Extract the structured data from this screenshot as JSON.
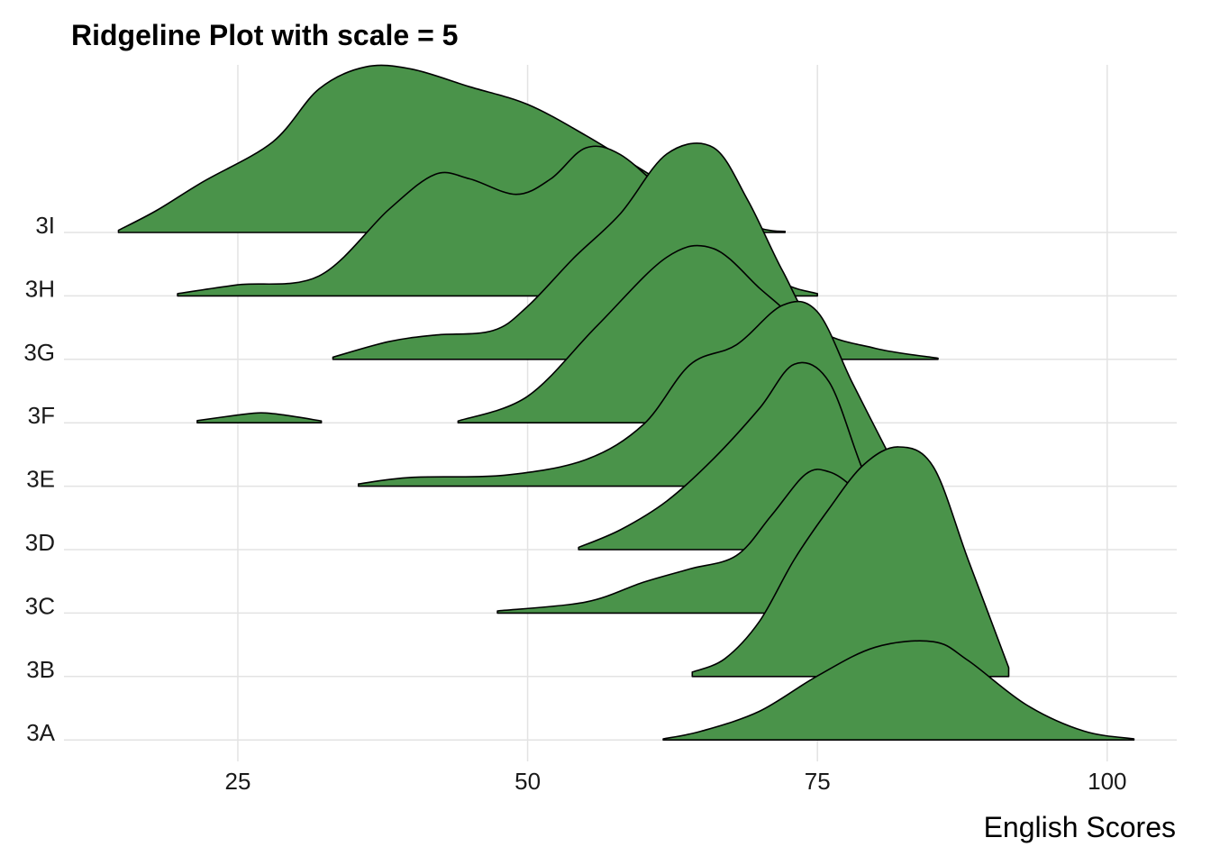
{
  "chart_data": {
    "type": "ridgeline",
    "title": "Ridgeline Plot with scale = 5",
    "xlabel": "English Scores",
    "ylabel": "",
    "xlim": [
      10,
      106
    ],
    "x_ticks": [
      25,
      50,
      75,
      100
    ],
    "grid": true,
    "fill_color": "#4a934a",
    "outline_color": "#000000",
    "scale": 5,
    "categories": [
      "3A",
      "3B",
      "3C",
      "3D",
      "3E",
      "3F",
      "3G",
      "3H",
      "3I"
    ],
    "series": [
      {
        "name": "3A",
        "x": [
          61.7,
          65,
          70,
          75,
          80,
          85,
          88,
          93,
          98,
          102.3
        ],
        "density": [
          0.05,
          0.4,
          1.3,
          2.9,
          4.2,
          4.45,
          3.6,
          1.6,
          0.4,
          0.05
        ]
      },
      {
        "name": "3B",
        "x": [
          64.2,
          67,
          70,
          73,
          76,
          79,
          82,
          85,
          88,
          91.5
        ],
        "density": [
          0.2,
          0.8,
          2.5,
          5.3,
          7.6,
          9.6,
          10.4,
          9.5,
          5.3,
          0.4
        ]
      },
      {
        "name": "3C",
        "x": [
          47.4,
          55,
          60,
          64,
          68,
          71,
          74,
          76,
          78,
          80,
          83,
          85
        ],
        "density": [
          0.1,
          0.5,
          1.4,
          2.0,
          2.6,
          4.4,
          6.3,
          6.4,
          5.7,
          4.3,
          1.2,
          0.3
        ]
      },
      {
        "name": "3D",
        "x": [
          54.4,
          58,
          62,
          66,
          70,
          73,
          76,
          79,
          81.9
        ],
        "density": [
          0.1,
          0.9,
          2.2,
          4.1,
          6.4,
          8.4,
          7.6,
          3.5,
          0.4
        ]
      },
      {
        "name": "3E",
        "x": [
          35.4,
          40,
          48,
          55,
          60,
          64,
          68,
          72,
          75,
          78,
          81.4
        ],
        "density": [
          0.1,
          0.4,
          0.5,
          1.2,
          2.8,
          5.5,
          6.4,
          8.2,
          7.9,
          4.7,
          1.2
        ]
      },
      {
        "name": "3F",
        "x": [
          21.5,
          25,
          27,
          29,
          32.2,
          44,
          50,
          56,
          62,
          66,
          70,
          73,
          76,
          78.4
        ],
        "density": [
          0.1,
          0.35,
          0.45,
          0.35,
          0.08,
          0.08,
          1.2,
          4.4,
          7.5,
          7.9,
          6.1,
          4.6,
          2.0,
          0.5
        ]
      },
      {
        "name": "3G",
        "x": [
          33.2,
          38,
          42,
          47,
          50,
          54,
          58,
          62,
          66,
          69,
          72,
          75,
          80,
          85.4
        ],
        "density": [
          0.1,
          0.8,
          1.1,
          1.3,
          2.4,
          4.6,
          6.6,
          9.3,
          9.6,
          7.2,
          4.0,
          1.4,
          0.5,
          0.05
        ]
      },
      {
        "name": "3H",
        "x": [
          19.8,
          25,
          32,
          38,
          42,
          45,
          49,
          52,
          55,
          58,
          62,
          65,
          68,
          72,
          75
        ],
        "density": [
          0.1,
          0.5,
          0.9,
          3.9,
          5.5,
          5.3,
          4.6,
          5.3,
          6.7,
          6.4,
          4.6,
          3.2,
          2.2,
          0.6,
          0.1
        ]
      },
      {
        "name": "3I",
        "x": [
          14.7,
          18,
          22,
          28,
          32,
          36,
          40,
          45,
          50,
          55,
          60,
          65,
          70,
          72.2
        ],
        "density": [
          0.1,
          1.0,
          2.3,
          4.1,
          6.5,
          7.5,
          7.4,
          6.6,
          5.8,
          4.4,
          2.8,
          1.2,
          0.2,
          0.05
        ]
      }
    ]
  }
}
